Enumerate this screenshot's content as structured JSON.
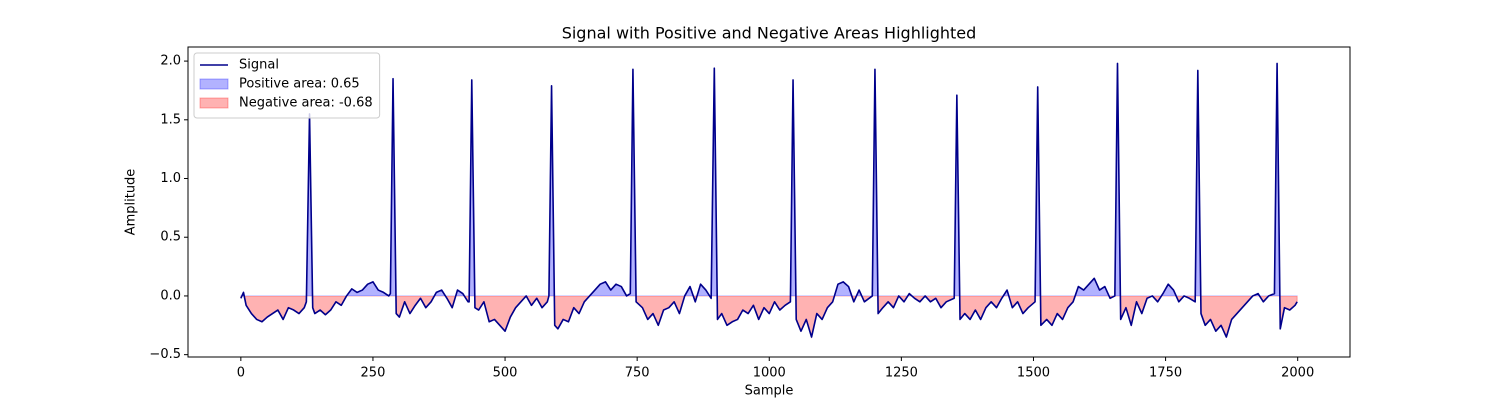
{
  "chart_data": {
    "type": "line",
    "title": "Signal with Positive and Negative Areas Highlighted",
    "x_label": "Sample",
    "y_label": "Amplitude",
    "x": [
      0,
      5,
      10,
      20,
      30,
      40,
      50,
      60,
      70,
      80,
      90,
      100,
      110,
      120,
      124,
      130,
      136,
      140,
      150,
      160,
      170,
      180,
      190,
      200,
      210,
      220,
      230,
      240,
      250,
      260,
      270,
      280,
      283,
      288,
      294,
      300,
      310,
      320,
      330,
      340,
      350,
      360,
      370,
      380,
      390,
      400,
      410,
      420,
      430,
      432,
      437,
      443,
      450,
      460,
      470,
      480,
      490,
      500,
      510,
      520,
      530,
      540,
      550,
      560,
      570,
      580,
      583,
      588,
      594,
      600,
      610,
      620,
      630,
      640,
      650,
      660,
      670,
      680,
      690,
      700,
      710,
      720,
      730,
      737,
      742,
      748,
      760,
      770,
      780,
      790,
      800,
      810,
      820,
      830,
      840,
      850,
      860,
      870,
      880,
      890,
      896,
      902,
      910,
      920,
      930,
      940,
      950,
      960,
      970,
      980,
      990,
      1000,
      1010,
      1020,
      1030,
      1040,
      1045,
      1051,
      1060,
      1070,
      1080,
      1090,
      1100,
      1110,
      1120,
      1130,
      1140,
      1150,
      1160,
      1170,
      1180,
      1195,
      1200,
      1206,
      1215,
      1225,
      1235,
      1245,
      1255,
      1265,
      1275,
      1285,
      1295,
      1305,
      1315,
      1325,
      1335,
      1350,
      1355,
      1361,
      1370,
      1380,
      1390,
      1400,
      1410,
      1420,
      1430,
      1440,
      1450,
      1460,
      1470,
      1480,
      1490,
      1503,
      1508,
      1514,
      1525,
      1535,
      1545,
      1555,
      1565,
      1575,
      1585,
      1595,
      1605,
      1615,
      1625,
      1635,
      1645,
      1654,
      1659,
      1665,
      1675,
      1685,
      1695,
      1705,
      1715,
      1725,
      1735,
      1745,
      1755,
      1765,
      1775,
      1785,
      1795,
      1806,
      1811,
      1817,
      1825,
      1835,
      1845,
      1855,
      1865,
      1875,
      1885,
      1895,
      1905,
      1915,
      1925,
      1935,
      1945,
      1956,
      1961,
      1967,
      1975,
      1985,
      1995,
      1999
    ],
    "series": [
      {
        "name": "Signal",
        "color": "#00008b",
        "values": [
          -0.02,
          0.03,
          -0.08,
          -0.15,
          -0.2,
          -0.22,
          -0.18,
          -0.15,
          -0.12,
          -0.2,
          -0.1,
          -0.12,
          -0.15,
          -0.1,
          -0.05,
          1.55,
          -0.1,
          -0.15,
          -0.12,
          -0.16,
          -0.12,
          -0.05,
          -0.08,
          0.0,
          0.06,
          0.03,
          0.05,
          0.1,
          0.12,
          0.05,
          0.03,
          0.0,
          0.02,
          1.85,
          -0.15,
          -0.18,
          -0.05,
          -0.15,
          -0.08,
          -0.02,
          -0.1,
          -0.05,
          0.03,
          0.05,
          -0.02,
          -0.1,
          0.05,
          0.02,
          -0.05,
          -0.05,
          1.84,
          -0.1,
          -0.12,
          -0.05,
          -0.22,
          -0.2,
          -0.25,
          -0.3,
          -0.18,
          -0.1,
          -0.05,
          0.0,
          -0.08,
          -0.02,
          -0.1,
          -0.05,
          0.0,
          1.79,
          -0.25,
          -0.28,
          -0.2,
          -0.22,
          -0.1,
          -0.15,
          -0.05,
          0.0,
          0.05,
          0.1,
          0.12,
          0.05,
          0.1,
          0.08,
          0.0,
          0.02,
          1.93,
          -0.05,
          -0.1,
          -0.2,
          -0.15,
          -0.25,
          -0.12,
          -0.1,
          -0.05,
          -0.15,
          0.0,
          0.08,
          -0.05,
          0.1,
          0.05,
          -0.02,
          1.94,
          -0.2,
          -0.15,
          -0.25,
          -0.22,
          -0.2,
          -0.12,
          -0.15,
          -0.08,
          -0.2,
          -0.1,
          -0.15,
          -0.05,
          -0.12,
          -0.08,
          -0.05,
          1.84,
          -0.2,
          -0.3,
          -0.2,
          -0.35,
          -0.15,
          -0.2,
          -0.1,
          -0.05,
          0.1,
          0.12,
          0.08,
          -0.05,
          0.05,
          -0.05,
          0.0,
          1.93,
          -0.15,
          -0.1,
          -0.05,
          -0.1,
          0.0,
          -0.05,
          0.02,
          -0.02,
          -0.05,
          0.0,
          -0.05,
          -0.02,
          -0.1,
          -0.05,
          -0.02,
          1.71,
          -0.2,
          -0.15,
          -0.2,
          -0.12,
          -0.2,
          -0.1,
          -0.05,
          -0.1,
          -0.02,
          0.05,
          -0.1,
          -0.05,
          -0.15,
          -0.1,
          -0.05,
          1.78,
          -0.25,
          -0.2,
          -0.25,
          -0.15,
          -0.2,
          -0.1,
          -0.05,
          0.08,
          0.05,
          0.1,
          0.15,
          0.05,
          0.08,
          -0.02,
          0.0,
          1.98,
          -0.2,
          -0.1,
          -0.25,
          -0.05,
          -0.15,
          -0.02,
          0.0,
          -0.05,
          0.02,
          0.1,
          0.05,
          -0.05,
          0.0,
          -0.02,
          -0.05,
          1.92,
          -0.15,
          -0.25,
          -0.2,
          -0.3,
          -0.25,
          -0.35,
          -0.2,
          -0.15,
          -0.1,
          -0.05,
          0.0,
          0.02,
          -0.05,
          0.0,
          0.02,
          1.98,
          -0.28,
          -0.1,
          -0.12,
          -0.08,
          -0.05
        ]
      }
    ],
    "fills": [
      {
        "name": "Positive area: 0.65",
        "color": "#0000ff"
      },
      {
        "name": "Negative area: -0.68",
        "color": "#ff0000"
      }
    ],
    "fill_alpha": 0.3,
    "xlim": [
      -100,
      2099
    ],
    "ylim": [
      -0.52,
      2.12
    ],
    "xticks": [
      0,
      250,
      500,
      750,
      1000,
      1250,
      1500,
      1750,
      2000
    ],
    "yticks": [
      {
        "value": -0.5,
        "label": "−0.5"
      },
      {
        "value": 0,
        "label": "0.0"
      },
      {
        "value": 0.5,
        "label": "0.5"
      },
      {
        "value": 1,
        "label": "1.0"
      },
      {
        "value": 1.5,
        "label": "1.5"
      },
      {
        "value": 2,
        "label": "2.0"
      }
    ],
    "legend": "upper left",
    "grid": false
  }
}
